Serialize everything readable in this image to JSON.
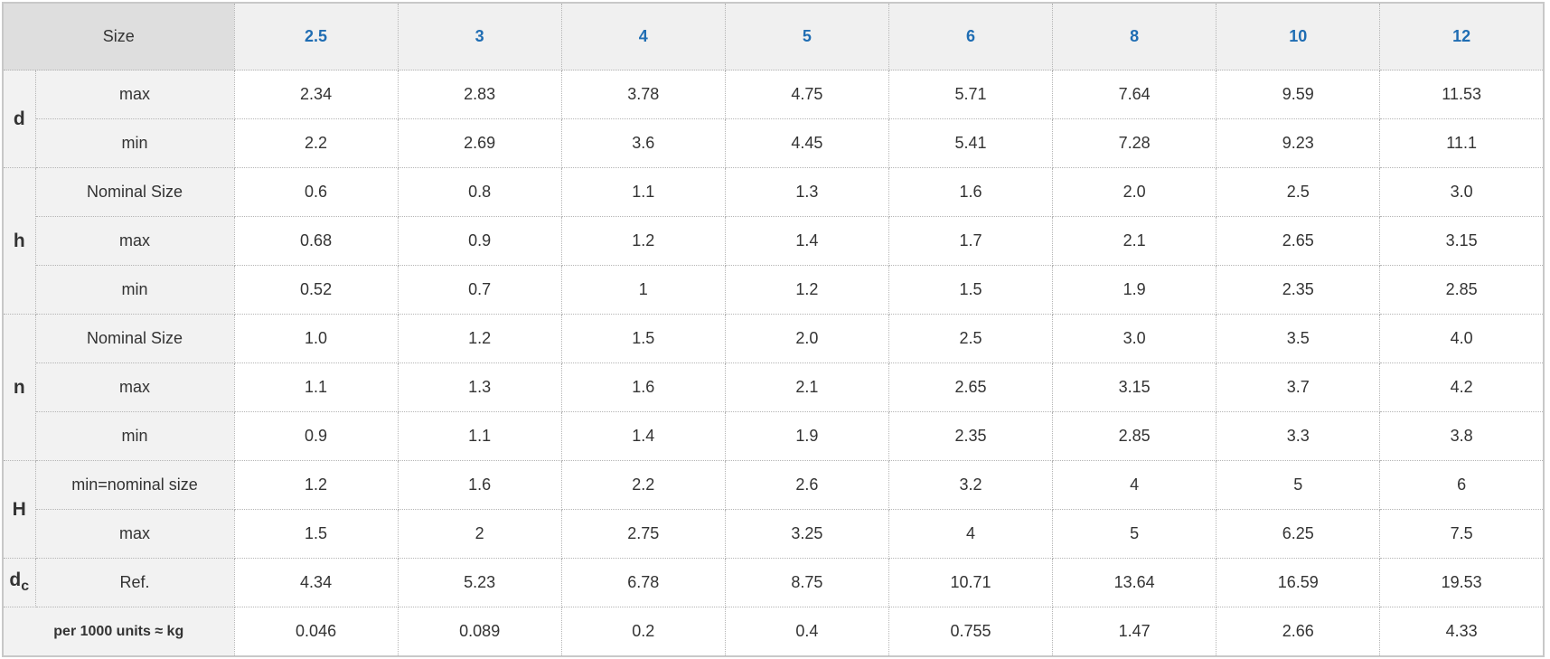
{
  "header": {
    "size_label": "Size",
    "sizes": [
      "2.5",
      "3",
      "4",
      "5",
      "6",
      "8",
      "10",
      "12"
    ]
  },
  "colors": {
    "header_text": "#1f6db3",
    "label_bg": "#f2f2f2",
    "header_bg": "#f0f0f0"
  },
  "rows": [
    {
      "group": "d",
      "label": "max",
      "values": [
        "2.34",
        "2.83",
        "3.78",
        "4.75",
        "5.71",
        "7.64",
        "9.59",
        "11.53"
      ]
    },
    {
      "label": "min",
      "values": [
        "2.2",
        "2.69",
        "3.6",
        "4.45",
        "5.41",
        "7.28",
        "9.23",
        "11.1"
      ]
    },
    {
      "group": "h",
      "label": "Nominal Size",
      "values": [
        "0.6",
        "0.8",
        "1.1",
        "1.3",
        "1.6",
        "2.0",
        "2.5",
        "3.0"
      ]
    },
    {
      "label": "max",
      "values": [
        "0.68",
        "0.9",
        "1.2",
        "1.4",
        "1.7",
        "2.1",
        "2.65",
        "3.15"
      ]
    },
    {
      "label": "min",
      "values": [
        "0.52",
        "0.7",
        "1",
        "1.2",
        "1.5",
        "1.9",
        "2.35",
        "2.85"
      ]
    },
    {
      "group": "n",
      "label": "Nominal Size",
      "values": [
        "1.0",
        "1.2",
        "1.5",
        "2.0",
        "2.5",
        "3.0",
        "3.5",
        "4.0"
      ]
    },
    {
      "label": "max",
      "values": [
        "1.1",
        "1.3",
        "1.6",
        "2.1",
        "2.65",
        "3.15",
        "3.7",
        "4.2"
      ]
    },
    {
      "label": "min",
      "values": [
        "0.9",
        "1.1",
        "1.4",
        "1.9",
        "2.35",
        "2.85",
        "3.3",
        "3.8"
      ]
    },
    {
      "group": "H",
      "label": "min=nominal size",
      "values": [
        "1.2",
        "1.6",
        "2.2",
        "2.6",
        "3.2",
        "4",
        "5",
        "6"
      ]
    },
    {
      "label": "max",
      "values": [
        "1.5",
        "2",
        "2.75",
        "3.25",
        "4",
        "5",
        "6.25",
        "7.5"
      ]
    },
    {
      "group": "d",
      "group_sub": "c",
      "label": "Ref.",
      "values": [
        "4.34",
        "5.23",
        "6.78",
        "8.75",
        "10.71",
        "13.64",
        "16.59",
        "19.53"
      ]
    },
    {
      "full_label": "per 1000 units ≈ kg",
      "values": [
        "0.046",
        "0.089",
        "0.2",
        "0.4",
        "0.755",
        "1.47",
        "2.66",
        "4.33"
      ]
    }
  ]
}
